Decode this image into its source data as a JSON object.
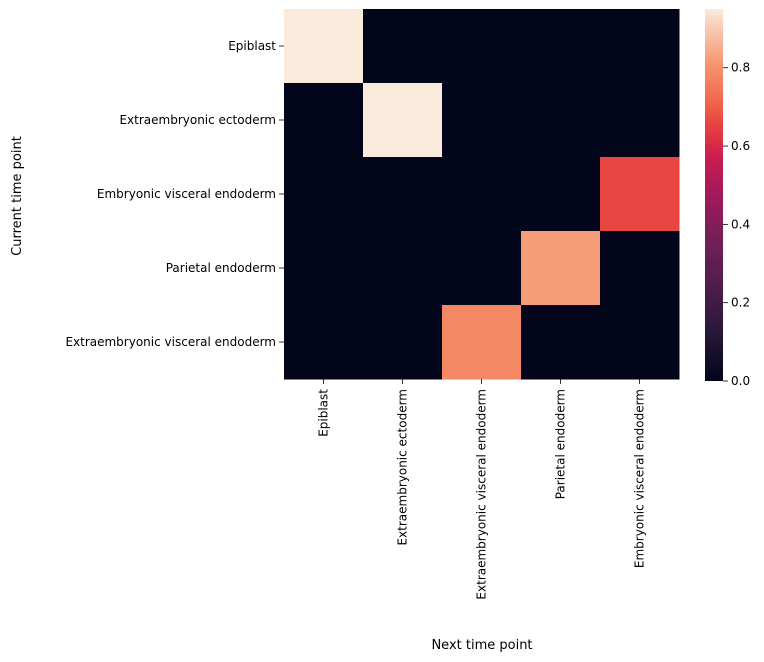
{
  "chart_data": {
    "type": "heatmap",
    "title": "",
    "xlabel": "Next time point",
    "ylabel": "Current time point",
    "x_categories": [
      "Epiblast",
      "Extraembryonic ectoderm",
      "Extraembryonic visceral endoderm",
      "Parietal endoderm",
      "Embryonic visceral endoderm"
    ],
    "y_categories": [
      "Epiblast",
      "Extraembryonic ectoderm",
      "Embryonic visceral endoderm",
      "Parietal endoderm",
      "Extraembryonic visceral endoderm"
    ],
    "values": [
      [
        0.95,
        0.0,
        0.0,
        0.0,
        0.0
      ],
      [
        0.0,
        0.95,
        0.0,
        0.0,
        0.0
      ],
      [
        0.0,
        0.0,
        0.0,
        0.0,
        0.66
      ],
      [
        0.0,
        0.0,
        0.0,
        0.82,
        0.0
      ],
      [
        0.0,
        0.0,
        0.78,
        0.0,
        0.0
      ]
    ],
    "colorbar": {
      "colormap": "rocket",
      "vmin": 0.0,
      "vmax": 0.95,
      "ticks": [
        "0.0",
        "0.2",
        "0.4",
        "0.6",
        "0.8"
      ],
      "tick_values": [
        0.0,
        0.2,
        0.4,
        0.6,
        0.8
      ]
    },
    "grid": false,
    "legend": "colorbar-right"
  }
}
